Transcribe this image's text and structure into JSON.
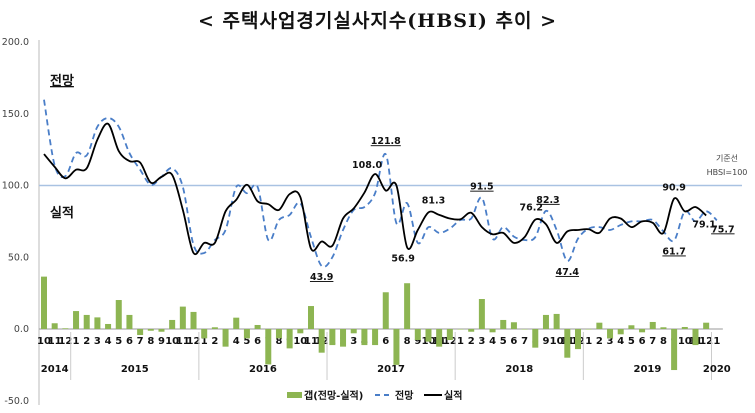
{
  "chart_data": {
    "type": "bar+line",
    "title": "< 주택사업경기실사지수(HBSI) 추이 >",
    "ylim": [
      -50,
      200
    ],
    "yticks": [
      "200.0",
      "150.0",
      "100.0",
      "50.0",
      "0.0",
      "-50.0"
    ],
    "years": [
      {
        "label": "2014",
        "months": [
          "10",
          "11",
          "12"
        ]
      },
      {
        "label": "2015",
        "months": [
          "1",
          "2",
          "3",
          "4",
          "5",
          "6",
          "7",
          "8",
          "9",
          "10",
          "11",
          "12"
        ]
      },
      {
        "label": "2016",
        "months": [
          "1",
          "2",
          "3",
          "4",
          "5",
          "6",
          "7",
          "8",
          "9",
          "10",
          "11",
          "12"
        ]
      },
      {
        "label": "2017",
        "months": [
          "1",
          "2",
          "3",
          "4",
          "5",
          "6",
          "7",
          "8",
          "9",
          "10",
          "11",
          "12"
        ]
      },
      {
        "label": "2018",
        "months": [
          "1",
          "2",
          "3",
          "4",
          "5",
          "6",
          "7",
          "8",
          "9",
          "10",
          "11",
          "12"
        ]
      },
      {
        "label": "2019",
        "months": [
          "1",
          "2",
          "3",
          "4",
          "5",
          "6",
          "7",
          "8",
          "9",
          "10",
          "11",
          "12"
        ]
      },
      {
        "label": "2020",
        "months": [
          "1"
        ]
      }
    ],
    "series": [
      {
        "name": "갭(전망-실적)",
        "type": "bar",
        "color": "#8DB552",
        "values": [
          36.5,
          4,
          0.5,
          12.5,
          9.8,
          8.1,
          3.5,
          20.2,
          9.8,
          -4.2,
          -1.2,
          -1.9,
          6.3,
          15.6,
          11.9,
          -6.5,
          1.2,
          -12.3,
          7.9,
          -6.5,
          2.8,
          -24.7,
          -6.5,
          -13.5,
          -3,
          16,
          -16.5,
          -11.2,
          -12.3,
          -3,
          -11.2,
          -11.2,
          25.6,
          -25,
          31.9,
          -7.7,
          -8.8,
          -12.3,
          -7.7,
          0,
          -1.9,
          20.9,
          -2.3,
          6.3,
          4.7,
          0,
          -13,
          9.8,
          10.5,
          -20,
          -14,
          0,
          4.4,
          -6.5,
          -3.7,
          2.6,
          -2.3,
          4.9,
          1.2,
          -28.6,
          1.4,
          -11.2,
          4.4
        ]
      },
      {
        "name": "전망",
        "type": "line",
        "style": "dashed",
        "color": "#4A7EC8",
        "values": [
          159.8,
          114,
          106.5,
          122.6,
          121,
          141,
          147,
          141,
          122.6,
          111,
          100.5,
          106,
          112,
          99,
          58.6,
          53,
          62,
          69,
          99,
          94.6,
          99,
          62,
          76,
          79.5,
          87.7,
          64,
          43.9,
          50,
          69,
          83,
          85,
          94.6,
          121.8,
          73.7,
          87.7,
          60,
          71,
          67,
          70,
          76,
          77,
          91.5,
          63,
          71,
          64.4,
          62,
          64,
          82.3,
          69,
          47.4,
          63,
          70,
          71,
          69,
          72.5,
          75,
          75,
          76,
          68,
          61.7,
          82,
          75,
          82,
          75.7
        ]
      },
      {
        "name": "실적",
        "type": "line",
        "style": "solid",
        "color": "#000000",
        "values": [
          121.9,
          113,
          105,
          111,
          112,
          132,
          143,
          124,
          117,
          116,
          102,
          106,
          107.4,
          83,
          53,
          60,
          60,
          82,
          90,
          100.5,
          89,
          87,
          83,
          94,
          92,
          56,
          61,
          58,
          77,
          84,
          95,
          108.0,
          96.5,
          100,
          56.9,
          69,
          81.3,
          79.5,
          77,
          76.5,
          81,
          71,
          66,
          67,
          60,
          64,
          76.2,
          73,
          60,
          68,
          69,
          69.5,
          67,
          77,
          77,
          71,
          75,
          74,
          67,
          90.9,
          82,
          85,
          79.1
        ]
      }
    ],
    "data_labels": {
      "forecast": [
        {
          "text": "121.8",
          "index": 32
        },
        {
          "text": "43.9",
          "index": 26
        },
        {
          "text": "91.5",
          "index": 41
        },
        {
          "text": "82.3",
          "index": 47
        },
        {
          "text": "47.4",
          "index": 49
        },
        {
          "text": "61.7",
          "index": 59
        },
        {
          "text": "75.7",
          "index": 63
        }
      ],
      "actual": [
        {
          "text": "108.0",
          "index": 31
        },
        {
          "text": "56.9",
          "index": 34
        },
        {
          "text": "81.3",
          "index": 36
        },
        {
          "text": "76.2",
          "index": 46
        },
        {
          "text": "90.9",
          "index": 59
        },
        {
          "text": "79.1",
          "index": 62
        }
      ]
    },
    "reference_line": {
      "value": 100,
      "label": "기준선",
      "sublabel": "HBSI=100",
      "color": "#A9C2E2"
    },
    "annotations": {
      "forecast": "전망",
      "actual": "실적"
    },
    "legend": {
      "position": "bottom",
      "items": [
        "갭(전망-실적)",
        "전망",
        "실적"
      ]
    },
    "grid": false
  }
}
